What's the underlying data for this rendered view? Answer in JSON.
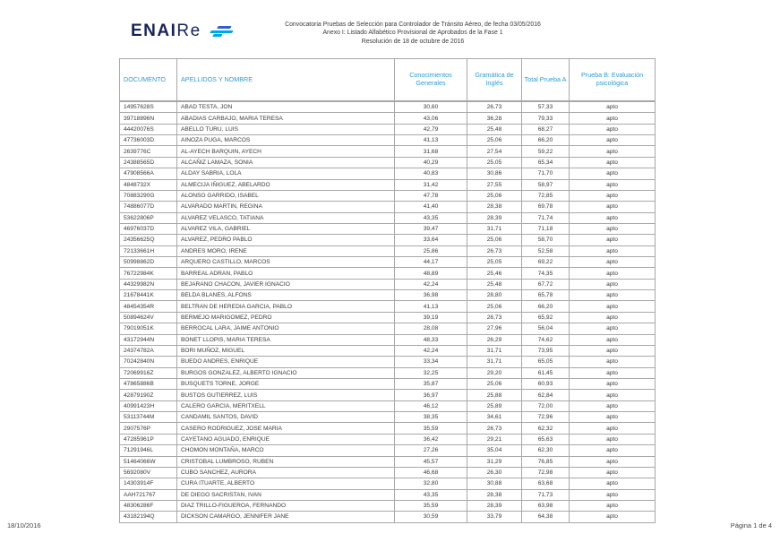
{
  "logo": {
    "text_heavy": "ENAI",
    "text_light": "Re",
    "brand_navy": "#16235a",
    "brand_blue": "#2f5fd0",
    "brand_cyan": "#00a7e1"
  },
  "header": {
    "line1": "Convocatoria Pruebas de Selección para Controlador de Tránsito Aéreo, de fecha 03/05/2016",
    "line2": "Anexo I: Listado Alfabético Provisional de Aprobados de la Fase 1",
    "line3": "Resolución de 18 de octubre de 2016"
  },
  "table": {
    "columns": [
      "DOCUMENTO",
      "APELLIDOS Y NOMBRE",
      "Conocimientos Generales",
      "Gramática de Inglés",
      "Total Prueba A",
      "Prueba B: Evaluación psicológica"
    ],
    "accent_color": "#2e9bd6",
    "border_color": "#a8a8a8",
    "rows": [
      [
        "14957628S",
        "ABAD TESTA, JON",
        "30,60",
        "26,73",
        "57,33",
        "apto"
      ],
      [
        "39718896N",
        "ABADIAS CARBAJO, MARIA TERESA",
        "43,06",
        "36,28",
        "79,33",
        "apto"
      ],
      [
        "44420076S",
        "ABELLO TURU, LUIS",
        "42,79",
        "25,48",
        "68,27",
        "apto"
      ],
      [
        "47736003D",
        "AINOZA PUGA, MARCOS",
        "41,13",
        "25,06",
        "66,20",
        "apto"
      ],
      [
        "2639776C",
        "AL-AYECH BARQUIN, AYECH",
        "31,68",
        "27,54",
        "59,22",
        "apto"
      ],
      [
        "24388565D",
        "ALCAÑIZ LAMAZA, SONIA",
        "40,29",
        "25,05",
        "65,34",
        "apto"
      ],
      [
        "47908566A",
        "ALDAY SABRIA, LOLA",
        "40,83",
        "30,86",
        "71,70",
        "apto"
      ],
      [
        "4848732X",
        "ALMECIJA IÑIGUEZ, ABELARDO",
        "31,42",
        "27,55",
        "58,97",
        "apto"
      ],
      [
        "70883290G",
        "ALONSO GARRIDO, ISABEL",
        "47,78",
        "25,06",
        "72,85",
        "apto"
      ],
      [
        "74886077D",
        "ALVARADO MARTIN, REGINA",
        "41,40",
        "28,38",
        "69,78",
        "apto"
      ],
      [
        "53622806P",
        "ALVAREZ VELASCO, TATIANA",
        "43,35",
        "28,39",
        "71,74",
        "apto"
      ],
      [
        "46976037D",
        "ALVAREZ VILA, GABRIEL",
        "39,47",
        "31,71",
        "71,18",
        "apto"
      ],
      [
        "24356625Q",
        "ALVAREZ, PEDRO PABLO",
        "33,64",
        "25,06",
        "58,70",
        "apto"
      ],
      [
        "72133661H",
        "ANDRES MORO, IRENE",
        "25,86",
        "26,73",
        "52,58",
        "apto"
      ],
      [
        "50998862D",
        "ARQUERO CASTILLO, MARCOS",
        "44,17",
        "25,05",
        "69,22",
        "apto"
      ],
      [
        "76722984K",
        "BARREAL ADRAN, PABLO",
        "48,89",
        "25,46",
        "74,35",
        "apto"
      ],
      [
        "44329982N",
        "BEJARANO CHACON, JAVIER IGNACIO",
        "42,24",
        "25,48",
        "67,72",
        "apto"
      ],
      [
        "21678441K",
        "BELDA BLANES, ALFONS",
        "36,98",
        "28,80",
        "65,78",
        "apto"
      ],
      [
        "48454354R",
        "BELTRAN DE HEREDIA GARCIA, PABLO",
        "41,13",
        "25,06",
        "66,20",
        "apto"
      ],
      [
        "50894624V",
        "BERMEJO MARIGOMEZ, PEDRO",
        "39,19",
        "26,73",
        "65,92",
        "apto"
      ],
      [
        "79019051K",
        "BERROCAL LARA, JAIME ANTONIO",
        "28,08",
        "27,96",
        "56,04",
        "apto"
      ],
      [
        "43172944N",
        "BONET LLOPIS, MARIA TERESA",
        "48,33",
        "26,29",
        "74,62",
        "apto"
      ],
      [
        "24374782A",
        "BORI MUÑOZ, MIGUEL",
        "42,24",
        "31,71",
        "73,95",
        "apto"
      ],
      [
        "70242840N",
        "BUEDO ANDRES, ENRIQUE",
        "33,34",
        "31,71",
        "65,05",
        "apto"
      ],
      [
        "72069916Z",
        "BURGOS GONZALEZ, ALBERTO IGNACIO",
        "32,25",
        "29,20",
        "61,45",
        "apto"
      ],
      [
        "47865886B",
        "BUSQUETS TORNE, JORGE",
        "35,87",
        "25,06",
        "60,93",
        "apto"
      ],
      [
        "42879190Z",
        "BUSTOS GUTIERREZ, LUIS",
        "36,97",
        "25,88",
        "62,84",
        "apto"
      ],
      [
        "40991423H",
        "CALERO GARCIA, MERITXELL",
        "46,12",
        "25,89",
        "72,00",
        "apto"
      ],
      [
        "53113744M",
        "CANDAMIL SANTOS, DAVID",
        "38,35",
        "34,61",
        "72,96",
        "apto"
      ],
      [
        "2907576P",
        "CASERO RODRIGUEZ, JOSE MARIA",
        "35,59",
        "26,73",
        "62,32",
        "apto"
      ],
      [
        "47285961P",
        "CAYETANO AGUADO, ENRIQUE",
        "36,42",
        "29,21",
        "65,63",
        "apto"
      ],
      [
        "71291946L",
        "CHOMON MONTAÑA, MARCO",
        "27,26",
        "35,04",
        "62,30",
        "apto"
      ],
      [
        "51464066W",
        "CRISTOBAL LUMBROSO, RUBEN",
        "45,57",
        "31,29",
        "76,85",
        "apto"
      ],
      [
        "5692080V",
        "CUBO SANCHEZ, AURORA",
        "46,68",
        "26,30",
        "72,98",
        "apto"
      ],
      [
        "14303914F",
        "CURA ITUARTE, ALBERTO",
        "32,80",
        "30,88",
        "63,68",
        "apto"
      ],
      [
        "AAH721767",
        "DE DIEGO SACRISTAN, IVAN",
        "43,35",
        "28,38",
        "71,73",
        "apto"
      ],
      [
        "48306286F",
        "DIAZ TRILLO-FIGUEROA, FERNANDO",
        "35,59",
        "28,39",
        "63,98",
        "apto"
      ],
      [
        "43182194Q",
        "DICKSON CAMARGO, JENNIFER JANE",
        "30,59",
        "33,79",
        "64,38",
        "apto"
      ]
    ]
  },
  "footer": {
    "date": "18/10/2016",
    "page": "Página 1 de 4"
  }
}
